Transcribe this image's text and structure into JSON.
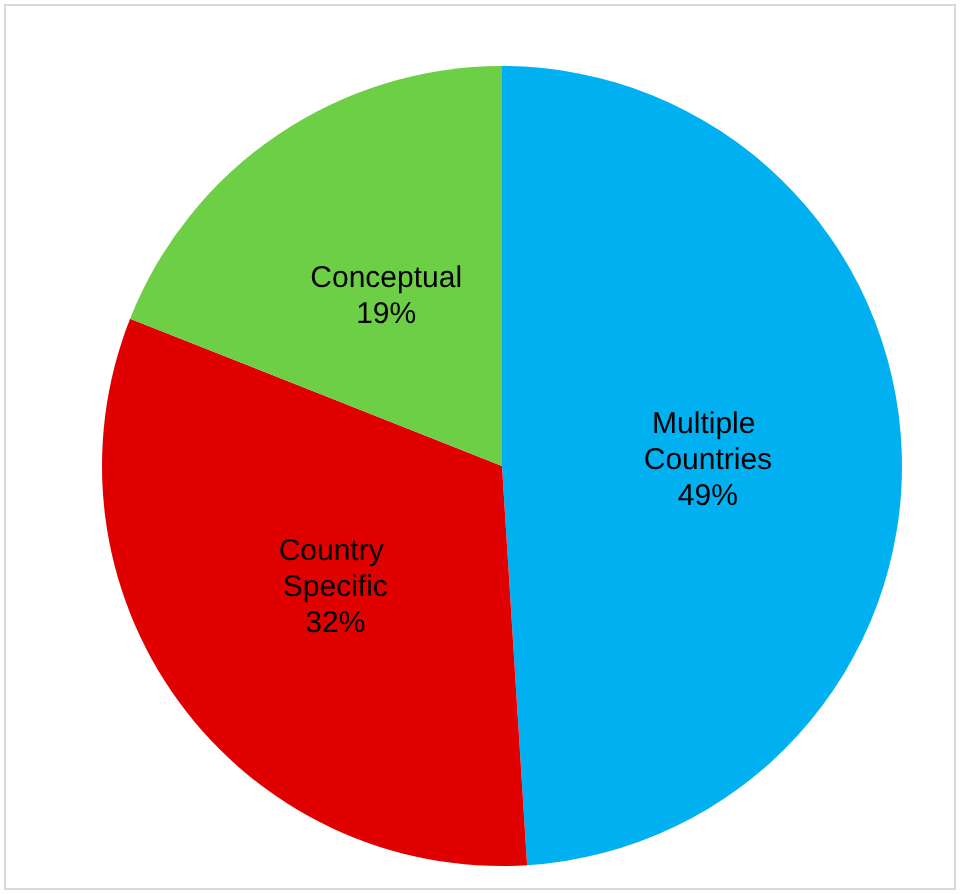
{
  "chart_data": {
    "type": "pie",
    "categories": [
      "Multiple Countries",
      "Country Specific",
      "Conceptual"
    ],
    "values": [
      49,
      32,
      19
    ],
    "colors": [
      "#00b0f0",
      "#e00000",
      "#6ccf45"
    ],
    "value_labels": [
      "49%",
      "32%",
      "19%"
    ],
    "legend": false
  }
}
